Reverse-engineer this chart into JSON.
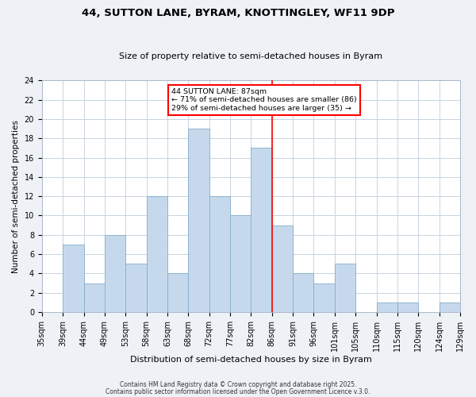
{
  "title": "44, SUTTON LANE, BYRAM, KNOTTINGLEY, WF11 9DP",
  "subtitle": "Size of property relative to semi-detached houses in Byram",
  "xlabel": "Distribution of semi-detached houses by size in Byram",
  "ylabel": "Number of semi-detached properties",
  "bin_labels": [
    "35sqm",
    "39sqm",
    "44sqm",
    "49sqm",
    "53sqm",
    "58sqm",
    "63sqm",
    "68sqm",
    "72sqm",
    "77sqm",
    "82sqm",
    "86sqm",
    "91sqm",
    "96sqm",
    "101sqm",
    "105sqm",
    "110sqm",
    "115sqm",
    "120sqm",
    "124sqm",
    "129sqm"
  ],
  "bin_counts": [
    0,
    7,
    3,
    8,
    5,
    12,
    4,
    19,
    12,
    10,
    17,
    9,
    4,
    3,
    5,
    0,
    1,
    1,
    0,
    1
  ],
  "bar_color": "#c6d9ec",
  "bar_edge_color": "#85aecb",
  "vline_label_index": 11,
  "vline_color": "red",
  "annotation_title": "44 SUTTON LANE: 87sqm",
  "annotation_line1": "← 71% of semi-detached houses are smaller (86)",
  "annotation_line2": "29% of semi-detached houses are larger (35) →",
  "annotation_box_color": "white",
  "annotation_box_edge": "red",
  "ylim": [
    0,
    24
  ],
  "yticks": [
    0,
    2,
    4,
    6,
    8,
    10,
    12,
    14,
    16,
    18,
    20,
    22,
    24
  ],
  "footer1": "Contains HM Land Registry data © Crown copyright and database right 2025.",
  "footer2": "Contains public sector information licensed under the Open Government Licence v.3.0.",
  "bg_color": "#eef2f7",
  "plot_bg_color": "white",
  "grid_color": "#c8d4e0",
  "title_fontsize": 9.5,
  "subtitle_fontsize": 8,
  "tick_fontsize": 7,
  "ylabel_fontsize": 7.5,
  "xlabel_fontsize": 8,
  "footer_fontsize": 5.5
}
